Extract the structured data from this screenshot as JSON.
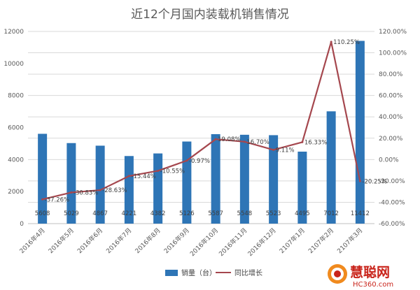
{
  "chart_data": {
    "type": "bar+line",
    "title": "近12个月国内装载机销售情况",
    "categories": [
      "2016年4月",
      "2016年5月",
      "2016年6月",
      "2016年7月",
      "2016年8月",
      "2016年9月",
      "2016年10月",
      "2016年11月",
      "2016年12月",
      "2107年1月",
      "2107年2月",
      "2107年3月"
    ],
    "series": [
      {
        "name": "销量（台）",
        "type": "bar",
        "axis": "left",
        "color": "#2e75b6",
        "values": [
          5608,
          5029,
          4867,
          4221,
          4382,
          5126,
          5587,
          5548,
          5523,
          4495,
          7012,
          11412
        ],
        "labels": [
          "5608",
          "5029",
          "4867",
          "4221",
          "4382",
          "5126",
          "5587",
          "5548",
          "5523",
          "4495",
          "7012",
          "11412"
        ]
      },
      {
        "name": "同比增长",
        "type": "line",
        "axis": "right",
        "color": "#a5474e",
        "values": [
          -37.26,
          -30.83,
          -28.63,
          -15.44,
          -10.55,
          -0.97,
          19.08,
          16.7,
          9.11,
          16.33,
          110.25,
          -20.25
        ],
        "labels": [
          "-37.26%",
          "-30.83%",
          "-28.63%",
          "-15.44%",
          "-10.55%",
          "-0.97%",
          "19.08%",
          "16.70%",
          "9.11%",
          "16.33%",
          "110.25%",
          "-20.25%"
        ]
      }
    ],
    "y_left": {
      "min": 0,
      "max": 12000,
      "ticks": [
        "0",
        "2000",
        "4000",
        "6000",
        "8000",
        "10000",
        "12000"
      ]
    },
    "y_right": {
      "min": -60,
      "max": 120,
      "ticks": [
        "-60.00%",
        "-40.00%",
        "-20.00%",
        "0.00%",
        "20.00%",
        "40.00%",
        "60.00%",
        "80.00%",
        "100.00%",
        "120.00%"
      ]
    },
    "grid": true,
    "legend_position": "bottom"
  },
  "watermark": {
    "brand": "慧聪网",
    "url": "HC360.com"
  }
}
